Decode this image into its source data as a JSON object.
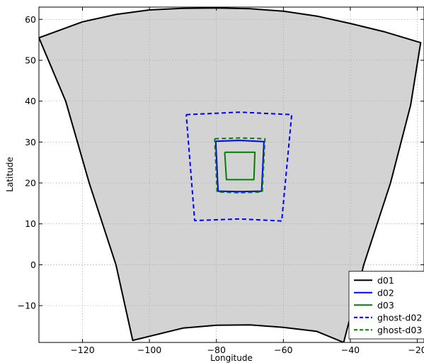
{
  "chart_data": {
    "type": "line",
    "title": "",
    "xlabel": "Longitude",
    "ylabel": "Latitude",
    "xlim": [
      -133,
      -18
    ],
    "ylim": [
      -19,
      63
    ],
    "x_ticks": [
      -120,
      -100,
      -80,
      -60,
      -40,
      -20
    ],
    "y_ticks": [
      -10,
      0,
      10,
      20,
      30,
      40,
      50,
      60
    ],
    "x_tick_labels": [
      "−120",
      "−100",
      "−80",
      "−60",
      "−40",
      "−20"
    ],
    "y_tick_labels": [
      "−10",
      "0",
      "10",
      "20",
      "30",
      "40",
      "50",
      "60"
    ],
    "grid": true,
    "legend_position": "lower-right",
    "domain_fill": "#d3d3d3",
    "series": [
      {
        "name": "d01",
        "color": "#000000",
        "dashed": false,
        "points": [
          [
            -133,
            55.5
          ],
          [
            -120,
            59.4
          ],
          [
            -110,
            61.2
          ],
          [
            -100,
            62.3
          ],
          [
            -90,
            62.7
          ],
          [
            -80,
            62.8
          ],
          [
            -70,
            62.6
          ],
          [
            -60,
            62.0
          ],
          [
            -50,
            60.8
          ],
          [
            -40,
            59.0
          ],
          [
            -30,
            57.0
          ],
          [
            -19,
            54.3
          ],
          [
            -22,
            39.0
          ],
          [
            -28,
            20.0
          ],
          [
            -36,
            0.0
          ],
          [
            -42,
            -19
          ],
          [
            -50,
            -16.3
          ],
          [
            -60,
            -15.3
          ],
          [
            -70,
            -14.7
          ],
          [
            -80,
            -14.8
          ],
          [
            -90,
            -15.5
          ],
          [
            -105,
            -18.5
          ],
          [
            -110,
            0.0
          ],
          [
            -118,
            20.0
          ],
          [
            -125,
            40.0
          ],
          [
            -133,
            55.5
          ]
        ]
      },
      {
        "name": "d02",
        "color": "#0000ff",
        "dashed": false,
        "points": [
          [
            -80.2,
            30.2
          ],
          [
            -73,
            30.4
          ],
          [
            -65.8,
            30.1
          ],
          [
            -66.5,
            18.0
          ],
          [
            -73,
            17.9
          ],
          [
            -79.5,
            18.0
          ],
          [
            -80.2,
            30.2
          ]
        ]
      },
      {
        "name": "d03",
        "color": "#008000",
        "dashed": false,
        "points": [
          [
            -77.5,
            27.5
          ],
          [
            -68.5,
            27.5
          ],
          [
            -68.8,
            20.8
          ],
          [
            -77.0,
            20.8
          ],
          [
            -77.5,
            27.5
          ]
        ]
      },
      {
        "name": "ghost-d02",
        "color": "#0000ff",
        "dashed": true,
        "points": [
          [
            -89.0,
            36.7
          ],
          [
            -73,
            37.3
          ],
          [
            -57.5,
            36.7
          ],
          [
            -60.5,
            10.7
          ],
          [
            -73,
            11.2
          ],
          [
            -86.5,
            10.8
          ],
          [
            -89.0,
            36.7
          ]
        ]
      },
      {
        "name": "ghost-d03",
        "color": "#008000",
        "dashed": true,
        "points": [
          [
            -80.5,
            30.8
          ],
          [
            -73,
            31.0
          ],
          [
            -65.5,
            30.8
          ],
          [
            -66.3,
            17.8
          ],
          [
            -73,
            17.6
          ],
          [
            -79.8,
            17.8
          ],
          [
            -80.5,
            30.8
          ]
        ]
      }
    ]
  }
}
